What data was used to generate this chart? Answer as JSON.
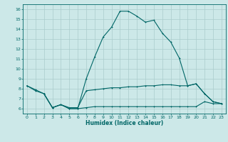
{
  "title": "",
  "xlabel": "Humidex (Indice chaleur)",
  "ylabel": "",
  "bg_color": "#cce8e8",
  "grid_color": "#aacccc",
  "line_color": "#006666",
  "xlim": [
    -0.5,
    23.5
  ],
  "ylim": [
    5.5,
    16.5
  ],
  "xticks": [
    0,
    1,
    2,
    3,
    4,
    5,
    6,
    7,
    8,
    9,
    10,
    11,
    12,
    13,
    14,
    15,
    16,
    17,
    18,
    19,
    20,
    21,
    22,
    23
  ],
  "yticks": [
    6,
    7,
    8,
    9,
    10,
    11,
    12,
    13,
    14,
    15,
    16
  ],
  "line1_x": [
    0,
    1,
    2,
    3,
    4,
    5,
    6,
    7,
    8,
    9,
    10,
    11,
    12,
    13,
    14,
    15,
    16,
    17,
    18,
    19,
    20,
    21,
    22,
    23
  ],
  "line1_y": [
    8.3,
    7.9,
    7.5,
    6.1,
    6.4,
    6.0,
    6.0,
    9.0,
    11.2,
    13.2,
    14.2,
    15.8,
    15.8,
    15.3,
    14.7,
    14.9,
    13.6,
    12.7,
    11.1,
    8.3,
    8.5,
    7.5,
    6.7,
    6.5
  ],
  "line2_x": [
    0,
    1,
    2,
    3,
    4,
    5,
    6,
    7,
    8,
    9,
    10,
    11,
    12,
    13,
    14,
    15,
    16,
    17,
    18,
    19,
    20,
    21,
    22,
    23
  ],
  "line2_y": [
    8.3,
    7.8,
    7.5,
    6.1,
    6.4,
    6.1,
    6.1,
    7.8,
    7.9,
    8.0,
    8.1,
    8.1,
    8.2,
    8.2,
    8.3,
    8.3,
    8.4,
    8.4,
    8.3,
    8.3,
    8.5,
    7.5,
    6.7,
    6.5
  ],
  "line3_x": [
    2,
    3,
    4,
    5,
    6,
    7,
    8,
    9,
    10,
    11,
    12,
    13,
    14,
    15,
    16,
    17,
    18,
    19,
    20,
    21,
    22,
    23
  ],
  "line3_y": [
    7.5,
    6.1,
    6.4,
    6.0,
    6.0,
    6.1,
    6.2,
    6.2,
    6.2,
    6.2,
    6.2,
    6.2,
    6.2,
    6.2,
    6.2,
    6.2,
    6.2,
    6.2,
    6.2,
    6.7,
    6.5,
    6.5
  ]
}
